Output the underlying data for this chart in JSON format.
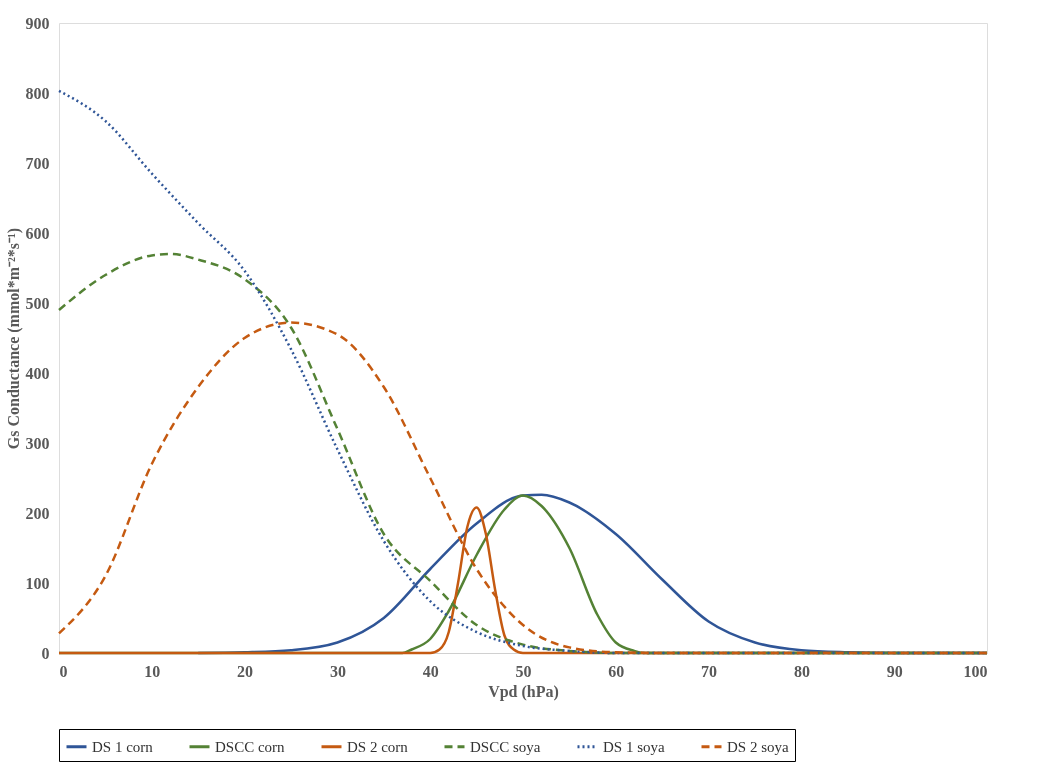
{
  "chart_data": {
    "type": "line",
    "xlabel": "Vpd (hPa)",
    "ylabel": "Gs Conductance (mmol*m⁻²*s⁻¹)",
    "xlim": [
      0,
      100
    ],
    "xticks": [
      0,
      10,
      20,
      30,
      40,
      50,
      60,
      70,
      80,
      90,
      100
    ],
    "ylim": [
      0,
      900
    ],
    "yticks": [
      0,
      100,
      200,
      300,
      400,
      500,
      600,
      700,
      800,
      900
    ],
    "grid": false,
    "legend": "bottom",
    "marker": "none",
    "series": [
      {
        "name": "DS 1 corn",
        "color": "#2f5597",
        "line_style": "solid",
        "x": [
          15,
          20,
          25,
          30,
          35,
          40,
          45,
          50,
          52,
          55,
          60,
          65,
          70,
          75,
          80,
          85,
          90,
          95,
          100
        ],
        "values": [
          0,
          1,
          4,
          15,
          50,
          120,
          185,
          225,
          226,
          215,
          170,
          105,
          45,
          15,
          4,
          1,
          0,
          0,
          0
        ]
      },
      {
        "name": "DSCC corn",
        "color": "#548235",
        "line_style": "solid",
        "x": [
          0,
          10,
          20,
          30,
          37,
          38,
          40,
          42,
          45,
          48,
          50,
          52,
          55,
          58,
          60,
          62,
          63,
          70,
          80,
          90,
          100
        ],
        "values": [
          0,
          0,
          0,
          0,
          0,
          5,
          20,
          60,
          140,
          205,
          225,
          210,
          150,
          55,
          15,
          3,
          0,
          0,
          0,
          0,
          0
        ]
      },
      {
        "name": "DS 2 corn",
        "color": "#c55a11",
        "line_style": "solid",
        "x": [
          0,
          10,
          20,
          30,
          40,
          41,
          42,
          43,
          44,
          45,
          46,
          47,
          48,
          49,
          50,
          60,
          70,
          80,
          90,
          100
        ],
        "values": [
          0,
          0,
          0,
          0,
          0,
          5,
          30,
          100,
          180,
          208,
          170,
          90,
          25,
          5,
          0,
          0,
          0,
          0,
          0,
          0
        ]
      },
      {
        "name": "DSCC soya",
        "color": "#548235",
        "line_style": "dashed",
        "x": [
          0,
          5,
          10,
          12,
          15,
          20,
          25,
          30,
          35,
          40,
          45,
          50,
          55,
          60,
          70,
          80,
          90,
          100
        ],
        "values": [
          490,
          540,
          568,
          570,
          562,
          534,
          465,
          320,
          170,
          103,
          40,
          12,
          3,
          0,
          0,
          0,
          0,
          0
        ]
      },
      {
        "name": "DS 1 soya",
        "color": "#2f5597",
        "line_style": "dotted",
        "x": [
          0,
          5,
          10,
          15,
          20,
          25,
          30,
          35,
          40,
          45,
          50,
          55,
          60,
          70,
          80,
          90,
          100
        ],
        "values": [
          803,
          760,
          685,
          614,
          546,
          434,
          291,
          160,
          74,
          30,
          10,
          3,
          0,
          0,
          0,
          0,
          0
        ]
      },
      {
        "name": "DS 2 soya",
        "color": "#c55a11",
        "line_style": "dashed",
        "x": [
          0,
          5,
          10,
          15,
          20,
          25,
          30,
          35,
          40,
          45,
          50,
          55,
          60,
          65,
          70,
          80,
          90,
          100
        ],
        "values": [
          28,
          110,
          270,
          380,
          450,
          472,
          455,
          380,
          250,
          120,
          40,
          8,
          1,
          0,
          0,
          0,
          0,
          0
        ]
      }
    ]
  }
}
